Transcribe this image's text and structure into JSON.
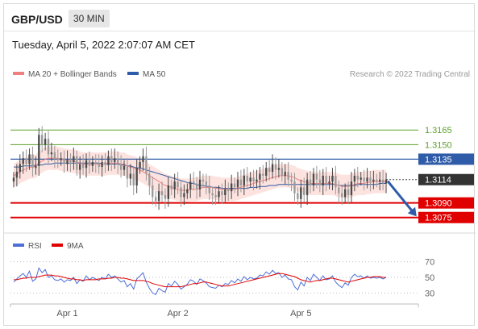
{
  "header": {
    "symbol": "GBP/USD",
    "timeframe": "30 MIN",
    "datetime": "Tuesday, April 5, 2022 2:07:07 AM CET"
  },
  "legend": {
    "ma20_label": "MA 20 + Bollinger Bands",
    "ma50_label": "MA 50",
    "credit": "Research © 2022 Trading Central"
  },
  "rsi_legend": {
    "rsi_label": "RSI",
    "ma_label": "9MA"
  },
  "colors": {
    "resistance": "#5aa02c",
    "ma50": "#2f5ca8",
    "support": "#e00000",
    "candle_up": "#4a4a4a",
    "candle_down": "#9a9a9a",
    "bollinger_fill": "#fde0dc",
    "ma20": "#f08080",
    "forecast_arrow": "#2f5ca8",
    "rsi": "#4d6fd6",
    "rsi_ma": "#e00000",
    "current_price_tag": "#333333"
  },
  "chart_data": [
    {
      "type": "candlestick",
      "title": "GBP/USD 30 MIN",
      "ylim": [
        1.3064,
        1.321
      ],
      "xticks": [
        "Apr 1",
        "Apr 2",
        "Apr 5"
      ],
      "levels": [
        {
          "label": "1.3165",
          "value": 1.3165,
          "kind": "resistance"
        },
        {
          "label": "1.3150",
          "value": 1.315,
          "kind": "resistance"
        },
        {
          "label": "1.3135",
          "value": 1.3135,
          "kind": "pivot"
        },
        {
          "label": "1.3114",
          "value": 1.3114,
          "kind": "current"
        },
        {
          "label": "1.3090",
          "value": 1.309,
          "kind": "support"
        },
        {
          "label": "1.3075",
          "value": 1.3075,
          "kind": "support"
        }
      ],
      "current_price": 1.3114,
      "forecast_target": 1.3075,
      "close": [
        1.3116,
        1.3122,
        1.313,
        1.3136,
        1.313,
        1.314,
        1.3126,
        1.3128,
        1.316,
        1.315,
        1.3156,
        1.314,
        1.3142,
        1.3136,
        1.3134,
        1.3136,
        1.313,
        1.3134,
        1.3132,
        1.3138,
        1.3124,
        1.313,
        1.3126,
        1.3134,
        1.3128,
        1.3132,
        1.313,
        1.3127,
        1.3132,
        1.3129,
        1.3138,
        1.3132,
        1.3136,
        1.313,
        1.3124,
        1.3128,
        1.3115,
        1.312,
        1.3108,
        1.3126,
        1.3132,
        1.3138,
        1.312,
        1.3108,
        1.3096,
        1.3092,
        1.3102,
        1.3098,
        1.3094,
        1.3108,
        1.3104,
        1.3112,
        1.3106,
        1.3096,
        1.31,
        1.3104,
        1.3112,
        1.311,
        1.3104,
        1.3114,
        1.3112,
        1.3108,
        1.31,
        1.3098,
        1.3096,
        1.3102,
        1.3098,
        1.3104,
        1.3102,
        1.311,
        1.3106,
        1.3114,
        1.3108,
        1.3118,
        1.3112,
        1.3116,
        1.3112,
        1.3114,
        1.312,
        1.3118,
        1.3126,
        1.3122,
        1.313,
        1.3124,
        1.3126,
        1.3118,
        1.3122,
        1.3114,
        1.3112,
        1.31,
        1.3094,
        1.3106,
        1.3098,
        1.3114,
        1.3108,
        1.312,
        1.3114,
        1.3108,
        1.3118,
        1.311,
        1.3112,
        1.3118,
        1.3106,
        1.31,
        1.3096,
        1.3104,
        1.3098,
        1.3112,
        1.3118,
        1.3114,
        1.3116,
        1.3112,
        1.3116,
        1.3112,
        1.3114,
        1.3112,
        1.3114,
        1.311,
        1.3114
      ],
      "ma20": [
        1.3118,
        1.312,
        1.3122,
        1.3124,
        1.3125,
        1.3127,
        1.3127,
        1.3128,
        1.3131,
        1.3133,
        1.3135,
        1.3136,
        1.3136,
        1.3136,
        1.3136,
        1.3135,
        1.3134,
        1.3134,
        1.3133,
        1.3133,
        1.3132,
        1.3131,
        1.313,
        1.313,
        1.313,
        1.313,
        1.313,
        1.313,
        1.313,
        1.313,
        1.3131,
        1.3131,
        1.3131,
        1.3131,
        1.313,
        1.313,
        1.3128,
        1.3127,
        1.3126,
        1.3125,
        1.3124,
        1.3122,
        1.312,
        1.3118,
        1.3116,
        1.3114,
        1.3112,
        1.311,
        1.3108,
        1.3107,
        1.3106,
        1.3105,
        1.3104,
        1.3103,
        1.3103,
        1.3103,
        1.3104,
        1.3104,
        1.3104,
        1.3105,
        1.3106,
        1.3106,
        1.3106,
        1.3106,
        1.3105,
        1.3105,
        1.3104,
        1.3104,
        1.3104,
        1.3104,
        1.3104,
        1.3105,
        1.3106,
        1.3107,
        1.3108,
        1.3109,
        1.311,
        1.3111,
        1.3112,
        1.3113,
        1.3114,
        1.3115,
        1.3116,
        1.3117,
        1.3118,
        1.3118,
        1.3118,
        1.3118,
        1.3117,
        1.3116,
        1.3114,
        1.3113,
        1.3112,
        1.3111,
        1.311,
        1.311,
        1.311,
        1.311,
        1.311,
        1.311,
        1.311,
        1.311,
        1.3109,
        1.3108,
        1.3107,
        1.3107,
        1.3107,
        1.3108,
        1.3109,
        1.311,
        1.311,
        1.311,
        1.3111,
        1.3111,
        1.3112,
        1.3112,
        1.3112,
        1.3112,
        1.3112
      ],
      "ma50": [
        1.3127,
        1.3127,
        1.3127,
        1.3128,
        1.3128,
        1.3128,
        1.3128,
        1.3129,
        1.3129,
        1.3129,
        1.313,
        1.313,
        1.313,
        1.3131,
        1.3131,
        1.3131,
        1.3131,
        1.3131,
        1.3131,
        1.3131,
        1.3131,
        1.3131,
        1.3131,
        1.3131,
        1.3131,
        1.3131,
        1.3131,
        1.3131,
        1.313,
        1.313,
        1.313,
        1.313,
        1.313,
        1.313,
        1.3129,
        1.3129,
        1.3128,
        1.3128,
        1.3127,
        1.3126,
        1.3126,
        1.3125,
        1.3124,
        1.3123,
        1.3122,
        1.3121,
        1.312,
        1.3119,
        1.3118,
        1.3117,
        1.3116,
        1.3115,
        1.3114,
        1.3113,
        1.3112,
        1.3111,
        1.311,
        1.311,
        1.3109,
        1.3108,
        1.3108,
        1.3107,
        1.3107,
        1.3106,
        1.3106,
        1.3106,
        1.3105,
        1.3105,
        1.3105,
        1.3105,
        1.3105,
        1.3105,
        1.3105,
        1.3105,
        1.3105,
        1.3106,
        1.3106,
        1.3106,
        1.3107,
        1.3107,
        1.3107,
        1.3108,
        1.3108,
        1.3108,
        1.3109,
        1.3109,
        1.3109,
        1.3109,
        1.3109,
        1.3109,
        1.3109,
        1.3109,
        1.3109,
        1.3109,
        1.3109,
        1.3109,
        1.3109,
        1.3109,
        1.3109,
        1.3109,
        1.3109,
        1.3109,
        1.3109,
        1.3108,
        1.3108,
        1.3108,
        1.3108,
        1.3108,
        1.3108,
        1.3109,
        1.3109,
        1.3109,
        1.3109,
        1.3109,
        1.3109,
        1.3109,
        1.311,
        1.311,
        1.311
      ],
      "band_width": 0.0012
    },
    {
      "type": "line",
      "title": "RSI",
      "ylim": [
        20,
        80
      ],
      "yticks": [
        70,
        50,
        30
      ],
      "series": [
        {
          "name": "RSI",
          "values": [
            44,
            48,
            52,
            55,
            50,
            58,
            45,
            48,
            62,
            56,
            60,
            50,
            52,
            47,
            46,
            48,
            44,
            47,
            46,
            50,
            42,
            47,
            45,
            52,
            47,
            50,
            48,
            46,
            50,
            48,
            54,
            50,
            52,
            48,
            44,
            46,
            38,
            42,
            35,
            48,
            52,
            56,
            44,
            36,
            30,
            28,
            36,
            33,
            31,
            42,
            39,
            45,
            41,
            35,
            38,
            41,
            47,
            45,
            41,
            48,
            46,
            43,
            38,
            37,
            36,
            40,
            38,
            42,
            41,
            46,
            43,
            48,
            45,
            51,
            47,
            50,
            48,
            49,
            53,
            52,
            57,
            54,
            59,
            55,
            56,
            50,
            53,
            48,
            47,
            38,
            34,
            44,
            39,
            50,
            46,
            54,
            50,
            46,
            52,
            47,
            48,
            52,
            44,
            40,
            37,
            43,
            40,
            50,
            54,
            51,
            52,
            49,
            52,
            49,
            50,
            49,
            50,
            48,
            50
          ]
        },
        {
          "name": "9MA",
          "values": [
            47,
            47,
            48,
            49,
            49,
            50,
            50,
            50,
            51,
            52,
            53,
            53,
            53,
            52,
            52,
            51,
            50,
            49,
            48,
            48,
            47,
            47,
            46,
            47,
            47,
            47,
            47,
            48,
            48,
            48,
            49,
            49,
            50,
            50,
            49,
            49,
            48,
            47,
            46,
            46,
            46,
            46,
            45,
            44,
            42,
            41,
            40,
            39,
            38,
            38,
            38,
            38,
            38,
            38,
            39,
            40,
            41,
            42,
            42,
            43,
            44,
            44,
            43,
            42,
            41,
            40,
            39,
            39,
            39,
            40,
            41,
            42,
            43,
            44,
            45,
            46,
            47,
            48,
            49,
            50,
            51,
            52,
            53,
            54,
            55,
            55,
            54,
            53,
            52,
            51,
            49,
            47,
            46,
            45,
            44,
            45,
            46,
            46,
            47,
            48,
            49,
            49,
            48,
            47,
            46,
            45,
            44,
            45,
            46,
            47,
            48,
            49,
            50,
            50,
            51,
            51,
            51,
            50,
            50
          ]
        }
      ]
    }
  ]
}
